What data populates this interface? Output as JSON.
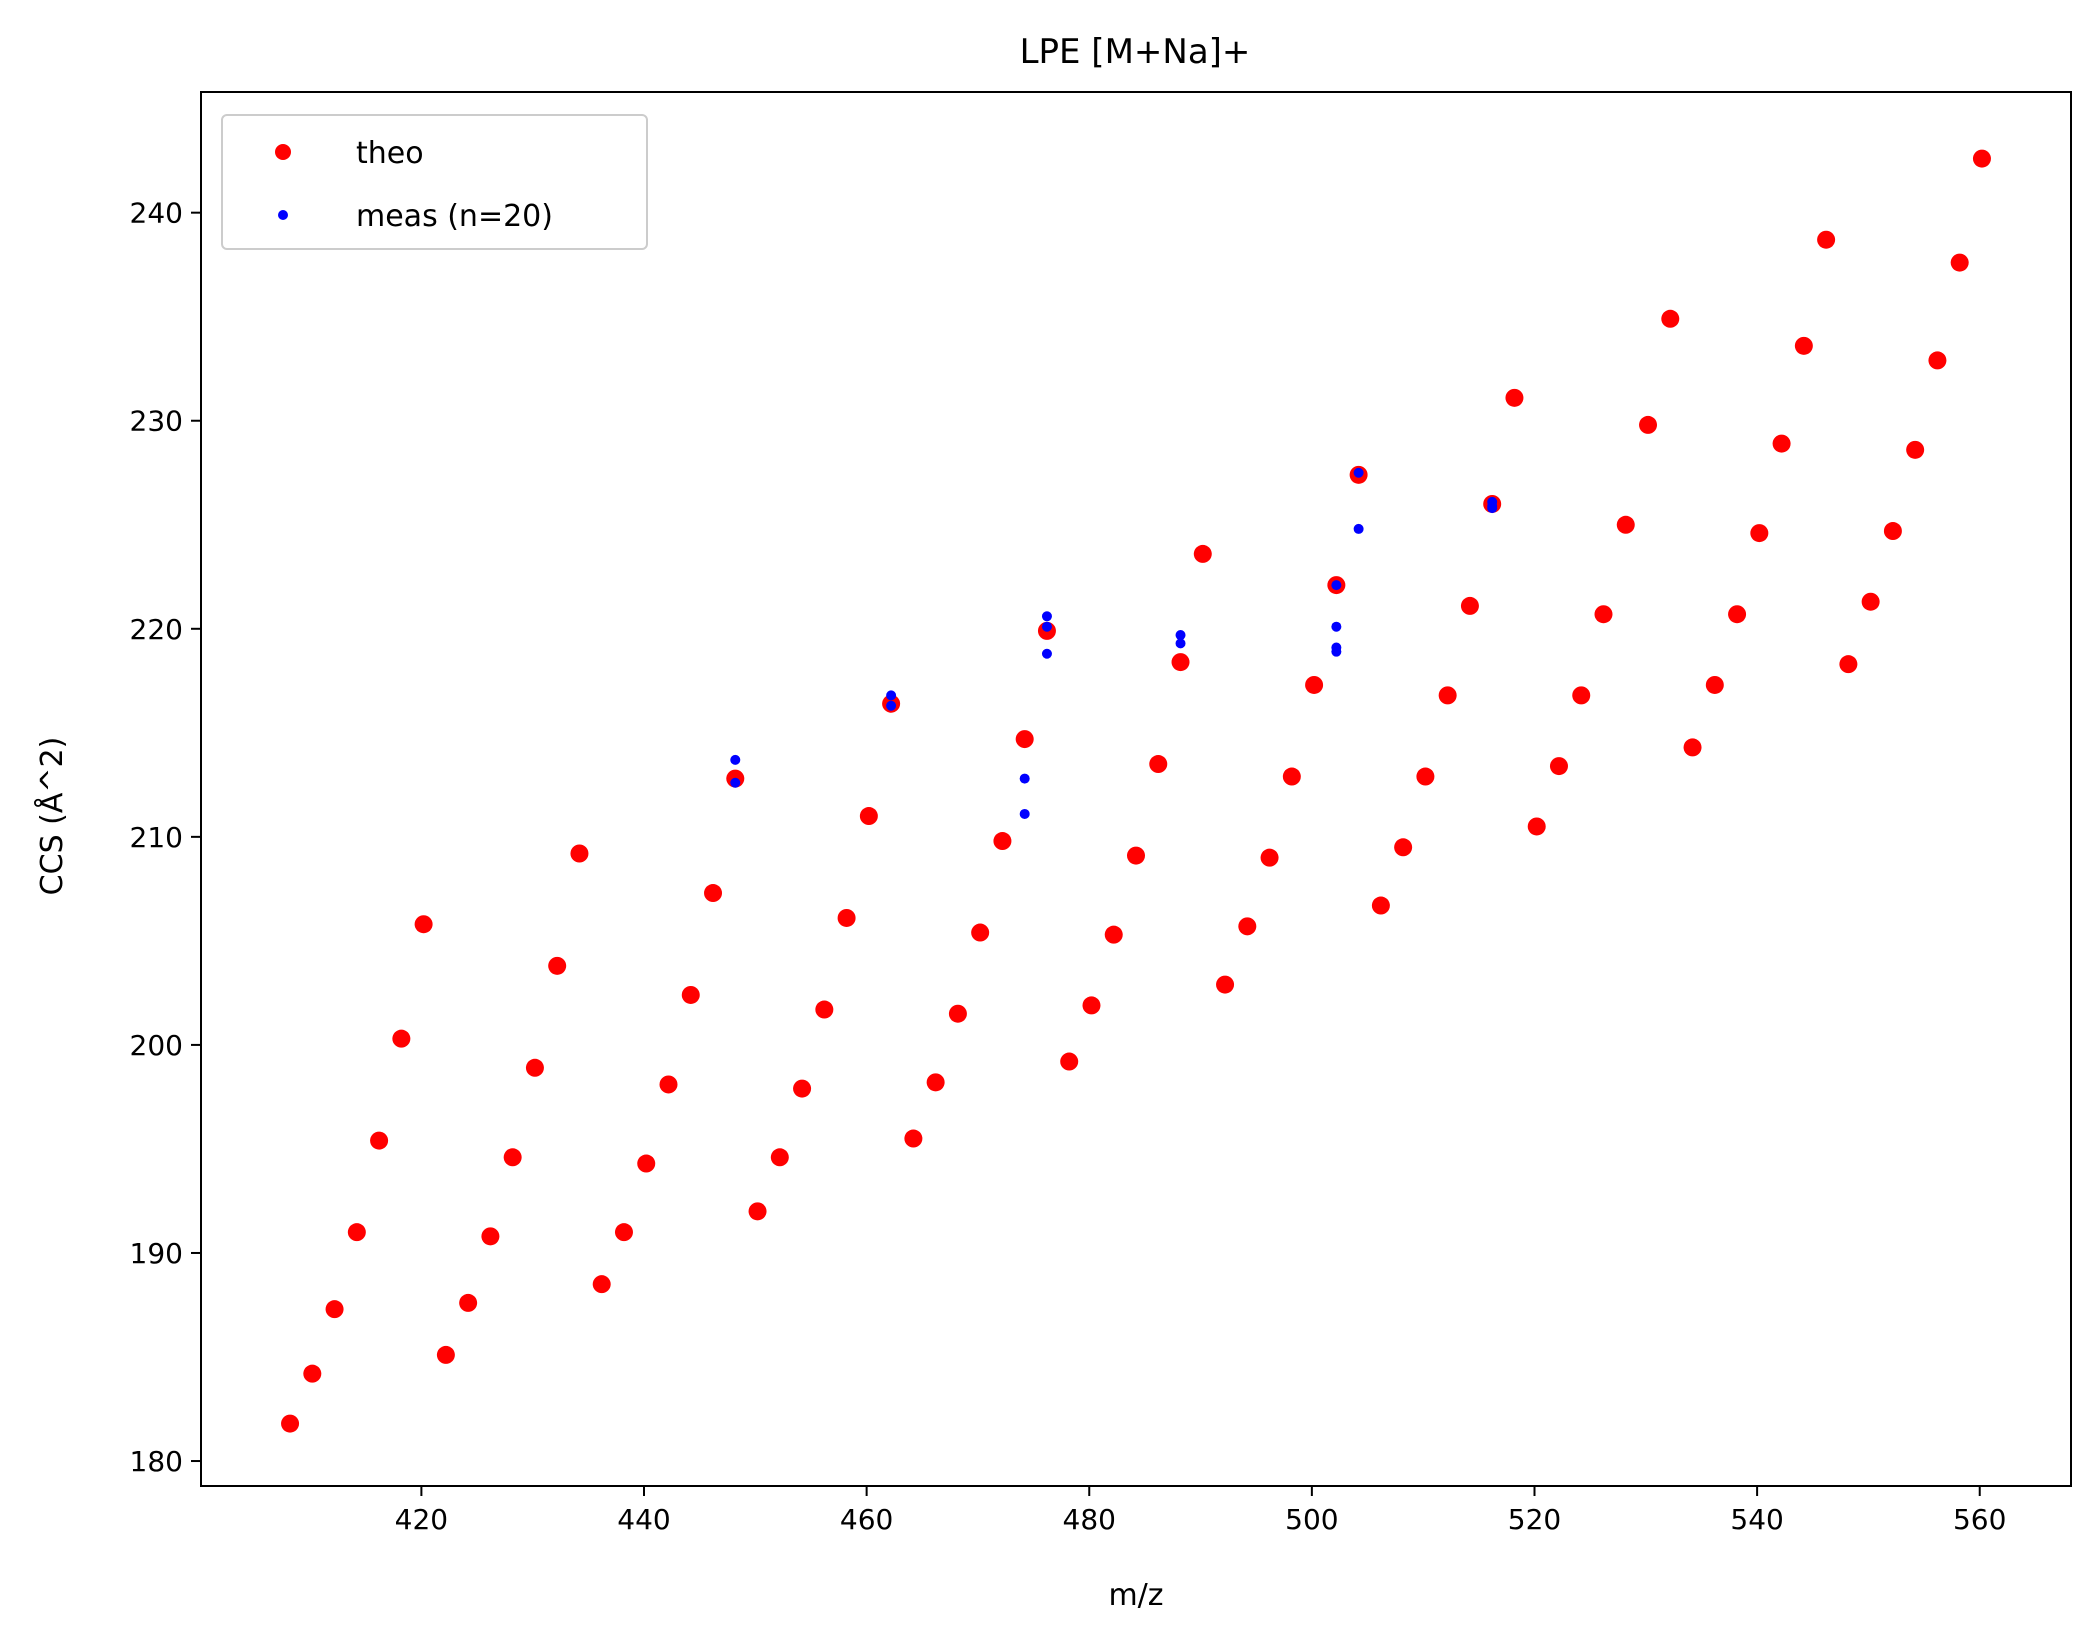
{
  "chart_data": {
    "type": "scatter",
    "title": "LPE [M+Na]+",
    "xlabel": "m/z",
    "ylabel": "CCS (Å^2)",
    "xlim": [
      400.2,
      568.2
    ],
    "ylim": [
      178.8,
      245.8
    ],
    "xticks": [
      420,
      440,
      460,
      480,
      500,
      520,
      540,
      560
    ],
    "yticks": [
      180,
      190,
      200,
      210,
      220,
      230,
      240
    ],
    "legend_position": "top-left",
    "grid": false,
    "series": [
      {
        "name": "theo",
        "color": "#ff0000",
        "marker": "circle-large",
        "points": [
          [
            408.2,
            181.8
          ],
          [
            410.2,
            184.2
          ],
          [
            412.2,
            187.3
          ],
          [
            414.2,
            191.0
          ],
          [
            416.2,
            195.4
          ],
          [
            418.2,
            200.3
          ],
          [
            420.2,
            205.8
          ],
          [
            422.2,
            185.1
          ],
          [
            424.2,
            187.6
          ],
          [
            426.2,
            190.8
          ],
          [
            428.2,
            194.6
          ],
          [
            430.2,
            198.9
          ],
          [
            432.2,
            203.8
          ],
          [
            434.2,
            209.2
          ],
          [
            436.2,
            188.5
          ],
          [
            438.2,
            191.0
          ],
          [
            440.2,
            194.3
          ],
          [
            442.2,
            198.1
          ],
          [
            444.2,
            202.4
          ],
          [
            446.2,
            207.3
          ],
          [
            448.2,
            212.8
          ],
          [
            450.2,
            192.0
          ],
          [
            452.2,
            194.6
          ],
          [
            454.2,
            197.9
          ],
          [
            456.2,
            201.7
          ],
          [
            458.2,
            206.1
          ],
          [
            460.2,
            211.0
          ],
          [
            462.2,
            216.4
          ],
          [
            464.2,
            195.5
          ],
          [
            466.2,
            198.2
          ],
          [
            468.2,
            201.5
          ],
          [
            470.2,
            205.4
          ],
          [
            472.2,
            209.8
          ],
          [
            474.2,
            214.7
          ],
          [
            476.2,
            219.9
          ],
          [
            478.2,
            199.2
          ],
          [
            480.2,
            201.9
          ],
          [
            482.2,
            205.3
          ],
          [
            484.2,
            209.1
          ],
          [
            486.2,
            213.5
          ],
          [
            488.2,
            218.4
          ],
          [
            490.2,
            223.6
          ],
          [
            492.2,
            202.9
          ],
          [
            494.2,
            205.7
          ],
          [
            496.2,
            209.0
          ],
          [
            498.2,
            212.9
          ],
          [
            500.2,
            217.3
          ],
          [
            502.2,
            222.1
          ],
          [
            504.2,
            227.4
          ],
          [
            506.2,
            206.7
          ],
          [
            508.2,
            209.5
          ],
          [
            510.2,
            212.9
          ],
          [
            512.2,
            216.8
          ],
          [
            514.2,
            221.1
          ],
          [
            516.2,
            226.0
          ],
          [
            518.2,
            231.1
          ],
          [
            520.2,
            210.5
          ],
          [
            522.2,
            213.4
          ],
          [
            524.2,
            216.8
          ],
          [
            526.2,
            220.7
          ],
          [
            528.2,
            225.0
          ],
          [
            530.2,
            229.8
          ],
          [
            532.2,
            234.9
          ],
          [
            534.2,
            214.3
          ],
          [
            536.2,
            217.3
          ],
          [
            538.2,
            220.7
          ],
          [
            540.2,
            224.6
          ],
          [
            542.2,
            228.9
          ],
          [
            544.2,
            233.6
          ],
          [
            546.2,
            238.7
          ],
          [
            548.2,
            218.3
          ],
          [
            550.2,
            221.3
          ],
          [
            552.2,
            224.7
          ],
          [
            554.2,
            228.6
          ],
          [
            556.2,
            232.9
          ],
          [
            558.2,
            237.6
          ],
          [
            560.2,
            242.6
          ]
        ]
      },
      {
        "name": "meas (n=20)",
        "color": "#0000ff",
        "marker": "circle-small",
        "points": [
          [
            448.2,
            213.7
          ],
          [
            448.2,
            212.6
          ],
          [
            462.2,
            216.8
          ],
          [
            462.2,
            216.3
          ],
          [
            474.2,
            212.8
          ],
          [
            474.2,
            211.1
          ],
          [
            476.2,
            220.6
          ],
          [
            476.2,
            220.1
          ],
          [
            476.2,
            218.8
          ],
          [
            488.2,
            219.7
          ],
          [
            488.2,
            219.3
          ],
          [
            502.2,
            222.1
          ],
          [
            502.2,
            220.1
          ],
          [
            502.2,
            219.1
          ],
          [
            502.2,
            218.9
          ],
          [
            504.2,
            227.5
          ],
          [
            504.2,
            224.8
          ],
          [
            516.2,
            226.1
          ],
          [
            516.2,
            225.9
          ],
          [
            516.2,
            225.8
          ]
        ]
      }
    ]
  }
}
